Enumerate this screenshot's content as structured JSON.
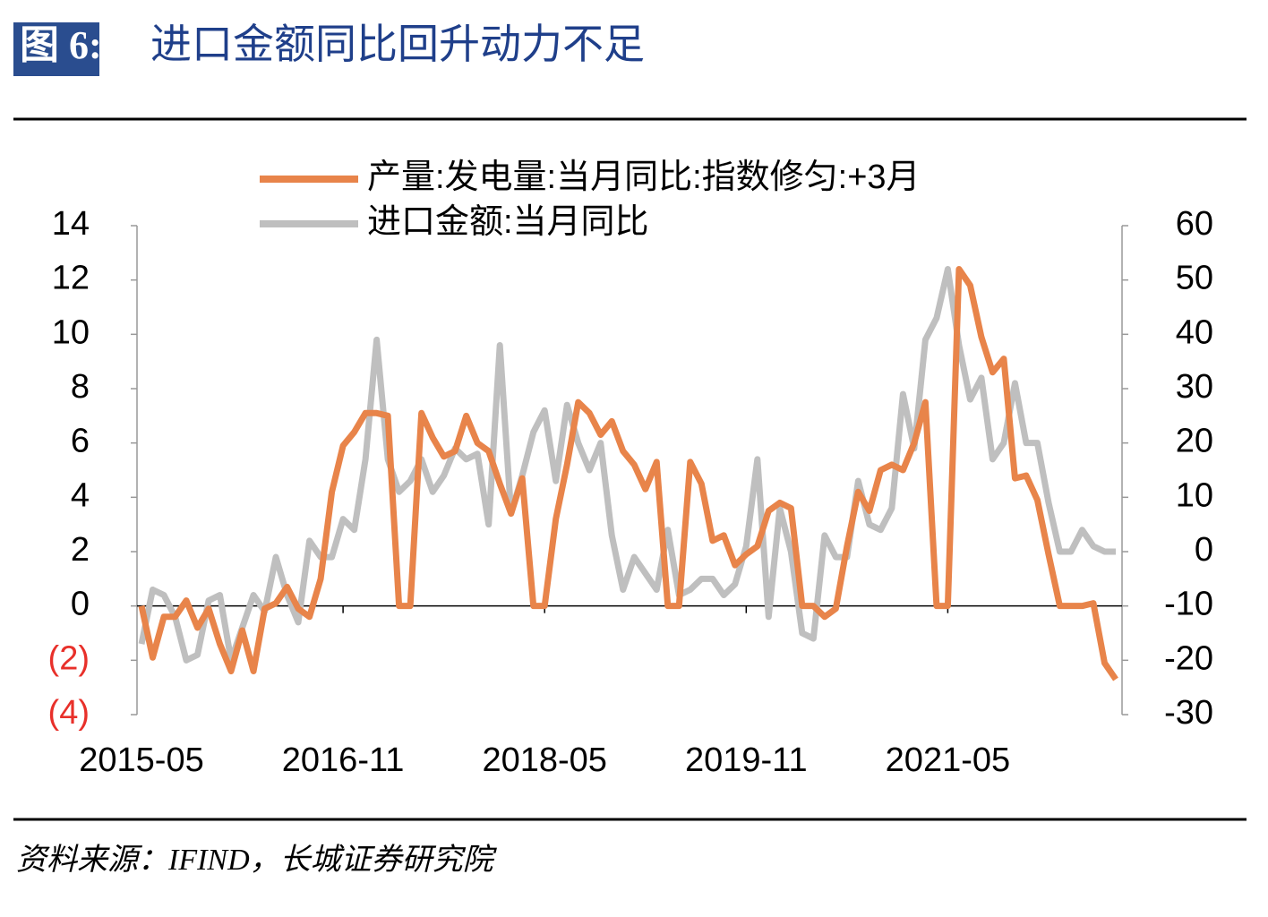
{
  "header": {
    "label": "图 6:",
    "title": "进口金额同比回升动力不足"
  },
  "chart_data": {
    "type": "line",
    "categories": [
      "2015-05",
      null,
      null,
      null,
      null,
      null,
      null,
      null,
      null,
      null,
      null,
      null,
      null,
      null,
      null,
      null,
      null,
      null,
      "2016-11",
      null,
      null,
      null,
      null,
      null,
      null,
      null,
      null,
      null,
      null,
      null,
      null,
      null,
      null,
      null,
      null,
      null,
      "2018-05",
      null,
      null,
      null,
      null,
      null,
      null,
      null,
      null,
      null,
      null,
      null,
      null,
      null,
      null,
      null,
      null,
      null,
      "2019-11",
      null,
      null,
      null,
      null,
      null,
      null,
      null,
      null,
      null,
      null,
      null,
      null,
      null,
      null,
      null,
      null,
      null,
      "2021-05",
      null,
      null,
      null,
      null,
      null,
      null,
      null,
      null,
      null,
      null,
      null,
      null,
      null,
      null,
      null
    ],
    "series": [
      {
        "name": "产量:发电量:当月同比:指数修匀:+3月",
        "color": "#e8844a",
        "axis": "y",
        "values": [
          0.0,
          -1.9,
          -0.4,
          -0.4,
          0.2,
          -0.8,
          -0.1,
          -1.4,
          -2.4,
          -0.9,
          -2.4,
          -0.1,
          0.1,
          0.7,
          -0.1,
          -0.4,
          1.0,
          4.2,
          5.9,
          6.4,
          7.1,
          7.1,
          7.0,
          0.0,
          0.0,
          7.1,
          6.2,
          5.5,
          5.7,
          7.0,
          6.0,
          5.7,
          4.5,
          3.4,
          4.7,
          0.0,
          0.0,
          3.2,
          5.2,
          7.5,
          7.1,
          6.3,
          6.8,
          5.7,
          5.2,
          4.3,
          5.3,
          0.0,
          0.0,
          5.3,
          4.5,
          2.4,
          2.6,
          1.5,
          1.9,
          2.2,
          3.5,
          3.8,
          3.6,
          0.0,
          0.0,
          -0.4,
          -0.1,
          2.2,
          4.2,
          3.5,
          5.0,
          5.2,
          5.0,
          6.0,
          7.5,
          0.0,
          0.0,
          12.4,
          11.8,
          9.9,
          8.6,
          9.1,
          4.7,
          4.8,
          3.9,
          1.9,
          0.0,
          0.0,
          0.0,
          0.1,
          -2.1,
          -2.7
        ]
      },
      {
        "name": "进口金额:当月同比",
        "color": "#bfbfbf",
        "axis": "y2",
        "values": [
          -17,
          -7,
          -8,
          -12,
          -20,
          -19,
          -9,
          -8,
          -20,
          -14,
          -8,
          -11,
          -1,
          -8,
          -13,
          2,
          -1,
          -1,
          6,
          4,
          17,
          39,
          17,
          11,
          13,
          17,
          11,
          14,
          19,
          17,
          18,
          5,
          38,
          7,
          14,
          22,
          26,
          13,
          27,
          20,
          15,
          20,
          3,
          -7,
          -1,
          -4,
          -7,
          4,
          -8,
          -7,
          -5,
          -5,
          -8,
          -6,
          1,
          17,
          -12,
          8,
          0,
          -15,
          -16,
          3,
          -1,
          -1,
          13,
          5,
          4,
          8,
          29,
          19,
          39,
          43,
          52,
          38,
          28,
          32,
          17,
          20,
          31,
          20,
          20,
          9,
          0,
          0,
          4,
          1,
          0,
          0
        ]
      }
    ],
    "ylim": [
      -4,
      14
    ],
    "yticks": [
      {
        "value": -4,
        "label": "(4)"
      },
      {
        "value": -2,
        "label": "(2)"
      },
      0,
      2,
      4,
      6,
      8,
      10,
      12,
      14
    ],
    "y2lim": [
      -30,
      60
    ],
    "y2ticks": [
      -30,
      -20,
      -10,
      0,
      10,
      20,
      30,
      40,
      50,
      60
    ],
    "negative_tick_color": "#e8302a",
    "legend": "top"
  },
  "source": "资料来源：IFIND，长城证券研究院"
}
